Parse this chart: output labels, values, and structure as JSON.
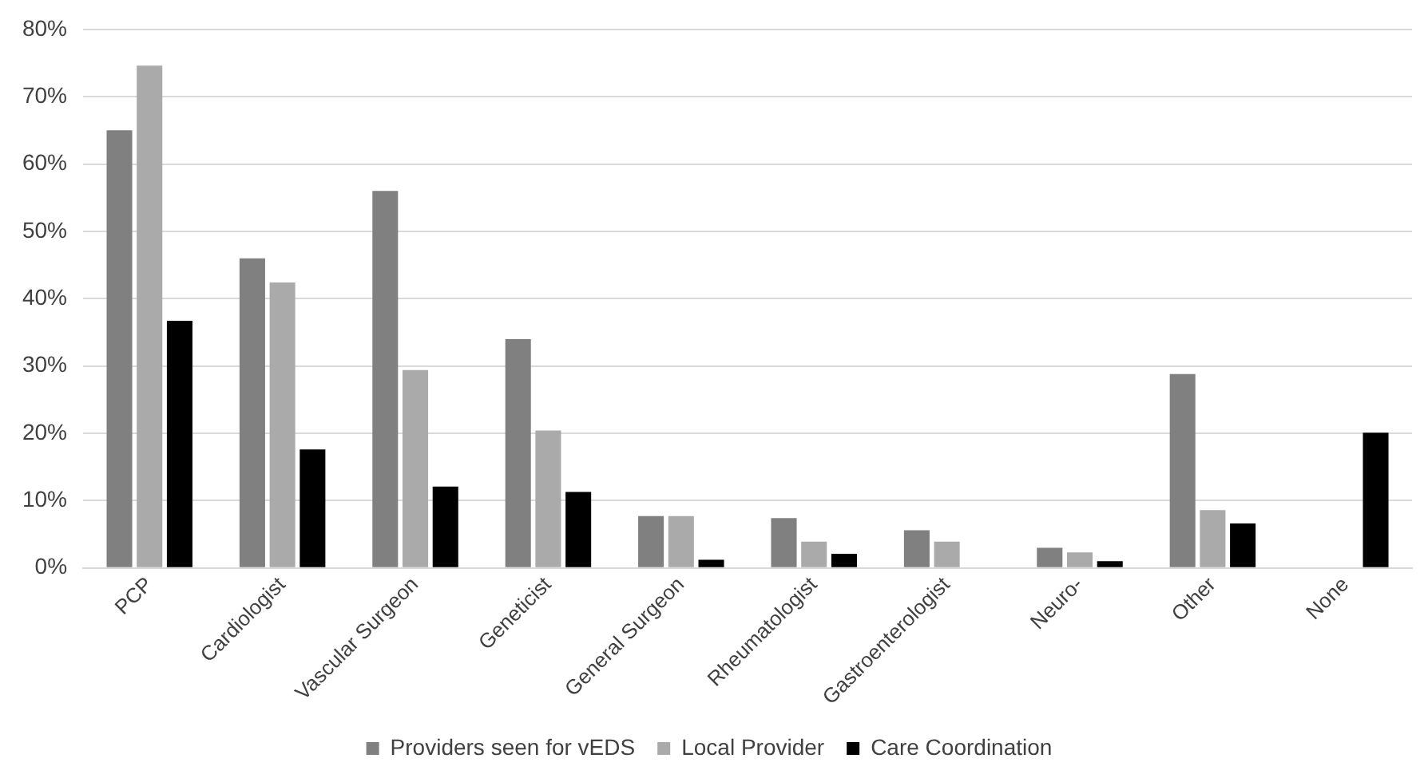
{
  "chart_data": {
    "type": "bar",
    "categories": [
      "PCP",
      "Cardiologist",
      "Vascular Surgeon",
      "Geneticist",
      "General Surgeon",
      "Rheumatologist",
      "Gastroenterologist",
      "Neuro-",
      "Other",
      "None"
    ],
    "series": [
      {
        "name": "Providers seen for vEDS",
        "color": "#808080",
        "values": [
          65,
          46,
          56,
          34,
          7.7,
          7.4,
          5.6,
          3,
          28.8,
          null
        ]
      },
      {
        "name": "Local Provider",
        "color": "#aaaaaa",
        "values": [
          74.6,
          42.4,
          29.4,
          20.4,
          7.7,
          3.9,
          3.9,
          2.3,
          8.6,
          null
        ]
      },
      {
        "name": "Care Coordination",
        "color": "#000000",
        "values": [
          36.7,
          17.6,
          12.1,
          11.3,
          1.2,
          2.1,
          null,
          1,
          6.6,
          20.1
        ]
      }
    ],
    "ylim": [
      0,
      80
    ],
    "yticks": [
      {
        "value": 0,
        "label": "0%"
      },
      {
        "value": 10,
        "label": "10%"
      },
      {
        "value": 20,
        "label": "20%"
      },
      {
        "value": 30,
        "label": "30%"
      },
      {
        "value": 40,
        "label": "40%"
      },
      {
        "value": 50,
        "label": "50%"
      },
      {
        "value": 60,
        "label": "60%"
      },
      {
        "value": 70,
        "label": "70%"
      },
      {
        "value": 80,
        "label": "80%"
      }
    ],
    "grid": "y",
    "legend": "bottom"
  }
}
